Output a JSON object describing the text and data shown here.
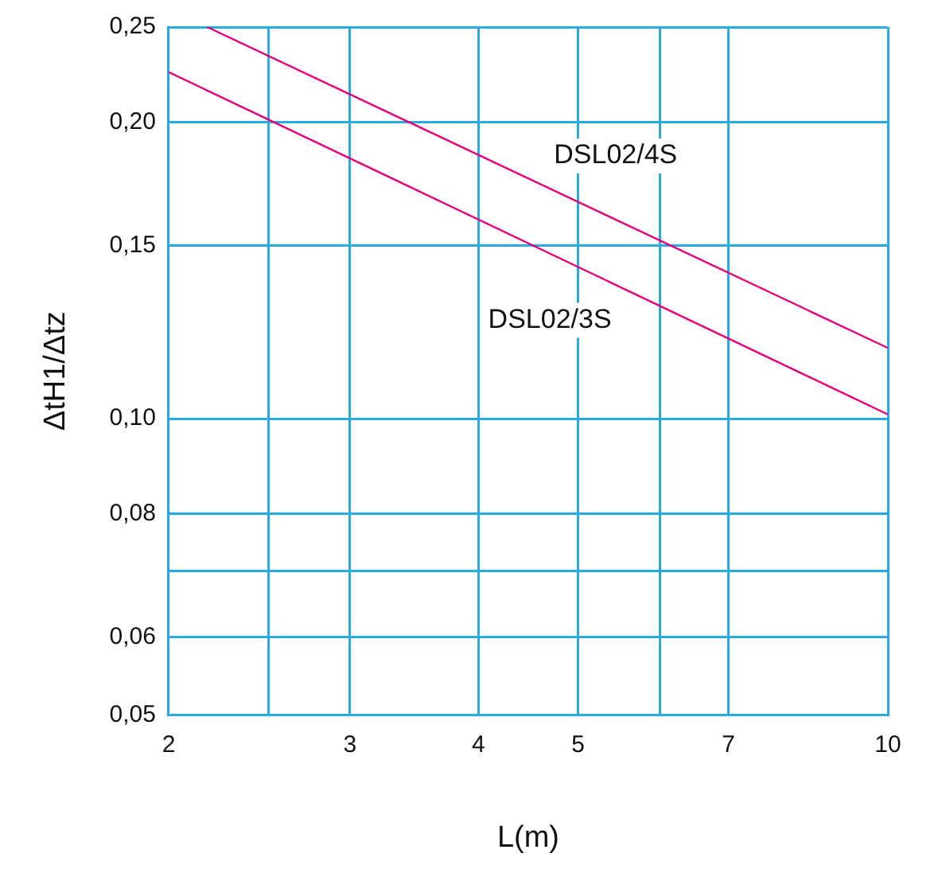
{
  "chart_data": {
    "type": "line",
    "xlabel": "L(m)",
    "ylabel": "ΔtH1/Δtz",
    "log": "xy",
    "grid": true,
    "legend": false,
    "marker": "none",
    "line_style": "solid",
    "xlim": [
      2,
      10
    ],
    "xticks": [
      2,
      {
        "value": 2.5,
        "label": null
      },
      3,
      4,
      5,
      {
        "value": 6,
        "label": null
      },
      7,
      10
    ],
    "ylim": [
      0.05,
      0.25
    ],
    "yticks": [
      {
        "value": 0.05,
        "label": "0,05"
      },
      {
        "value": 0.06,
        "label": "0,06"
      },
      {
        "value": 0.07,
        "label": null
      },
      {
        "value": 0.08,
        "label": "0,08"
      },
      {
        "value": 0.1,
        "label": "0,10"
      },
      {
        "value": 0.15,
        "label": "0,15"
      },
      {
        "value": 0.2,
        "label": "0,20"
      },
      {
        "value": 0.25,
        "label": "0,25"
      }
    ],
    "series": [
      {
        "name": "DSL02/4S",
        "color": "#e6007e",
        "x": [
          2.18,
          10
        ],
        "values": [
          0.25,
          0.118
        ]
      },
      {
        "name": "DSL02/3S",
        "color": "#e6007e",
        "x": [
          2,
          10
        ],
        "values": [
          0.225,
          0.101
        ]
      }
    ]
  }
}
